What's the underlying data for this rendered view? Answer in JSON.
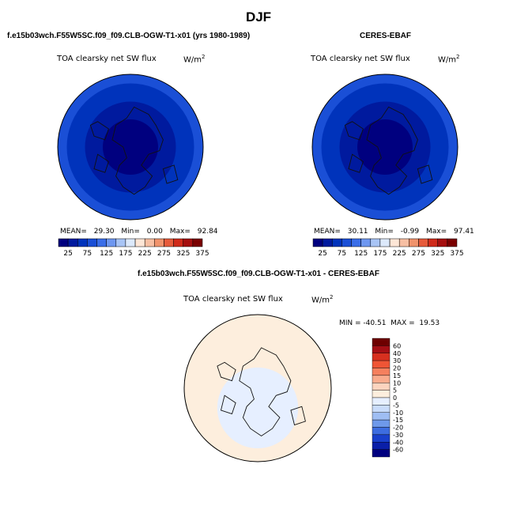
{
  "page_title": "DJF",
  "colors": {
    "full_scale": [
      "#00007f",
      "#001a9e",
      "#0033bb",
      "#1a4fd6",
      "#3a6ee8",
      "#6e97f0",
      "#a8c4f5",
      "#dce9fb",
      "#fde6d6",
      "#f7bfa3",
      "#f0936c",
      "#e65b3b",
      "#cf2a1a",
      "#a50f0f",
      "#7a0000"
    ],
    "diff_scale": [
      "#6e0000",
      "#a50f15",
      "#d7301f",
      "#ef5535",
      "#f5805e",
      "#f9ab8d",
      "#fcd4bf",
      "#fdeedd",
      "#e6efff",
      "#c9dcfb",
      "#9fbef3",
      "#6e99ea",
      "#3d6de0",
      "#1940cc",
      "#0a1fa8",
      "#000080"
    ]
  },
  "panels": {
    "model": {
      "header": "f.e15b03wch.F55W5SC.f09_f09.CLB-OGW-T1-x01 (yrs 1980-1989)",
      "variable": "TOA clearsky net SW flux",
      "units": "W/m",
      "units_exp": "2",
      "stats": {
        "mean_label": "MEAN=",
        "mean": "29.30",
        "min_label": "Min=",
        "min": "0.00",
        "max_label": "Max=",
        "max": "92.84"
      },
      "colorbar_labels": [
        "25",
        "75",
        "125",
        "175",
        "225",
        "275",
        "325",
        "375"
      ]
    },
    "obs": {
      "header": "CERES-EBAF",
      "variable": "TOA clearsky net SW flux",
      "units": "W/m",
      "units_exp": "2",
      "stats": {
        "mean_label": "MEAN=",
        "mean": "30.11",
        "min_label": "Min=",
        "min": "-0.99",
        "max_label": "Max=",
        "max": "97.41"
      },
      "colorbar_labels": [
        "25",
        "75",
        "125",
        "175",
        "225",
        "275",
        "325",
        "375"
      ]
    },
    "diff": {
      "header": "f.e15b03wch.F55W5SC.f09_f09.CLB-OGW-T1-x01 - CERES-EBAF",
      "variable": "TOA clearsky net SW flux",
      "units": "W/m",
      "units_exp": "2",
      "stats_text": "MIN = -40.51  MAX =  19.53",
      "colorbar_labels": [
        "60",
        "40",
        "30",
        "20",
        "15",
        "10",
        "5",
        "0",
        "-5",
        "-10",
        "-15",
        "-20",
        "-30",
        "-40",
        "-60"
      ]
    }
  },
  "chart_data": [
    {
      "type": "heatmap",
      "projection": "north-polar-stereographic",
      "title": "TOA clearsky net SW flux",
      "units": "W/m2",
      "stats": {
        "mean": 29.3,
        "min": 0.0,
        "max": 92.84
      },
      "contour_levels": [
        25,
        50,
        75,
        100,
        125,
        150,
        175,
        200,
        225,
        250,
        275,
        300,
        325,
        350,
        375
      ],
      "ring_values": [
        [
          90,
          1
        ],
        [
          75,
          20
        ],
        [
          65,
          45
        ],
        [
          55,
          70
        ],
        [
          50,
          85
        ]
      ]
    },
    {
      "type": "heatmap",
      "projection": "north-polar-stereographic",
      "title": "TOA clearsky net SW flux",
      "units": "W/m2",
      "stats": {
        "mean": 30.11,
        "min": -0.99,
        "max": 97.41
      },
      "contour_levels": [
        25,
        50,
        75,
        100,
        125,
        150,
        175,
        200,
        225,
        250,
        275,
        300,
        325,
        350,
        375
      ],
      "ring_values": [
        [
          90,
          1
        ],
        [
          75,
          20
        ],
        [
          65,
          45
        ],
        [
          55,
          70
        ],
        [
          50,
          85
        ]
      ]
    },
    {
      "type": "heatmap",
      "projection": "north-polar-stereographic",
      "title": "TOA clearsky net SW flux",
      "units": "W/m2",
      "stats": {
        "min": -40.51,
        "max": 19.53
      },
      "contour_levels": [
        -60,
        -40,
        -30,
        -20,
        -15,
        -10,
        -5,
        0,
        5,
        10,
        15,
        20,
        30,
        40,
        60
      ],
      "dominant_value_range": [
        0,
        5
      ]
    }
  ]
}
